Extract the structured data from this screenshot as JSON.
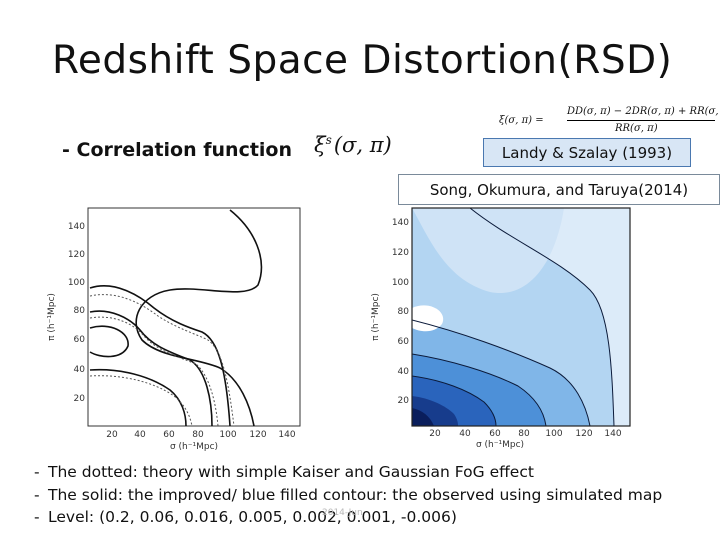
{
  "slide": {
    "title": "Redshift Space Distortion(RSD)",
    "subtitle": "- Correlation function",
    "xi_symbol": "ξ",
    "xi_superscript": "s",
    "xi_args": "(σ, π)",
    "formula": {
      "lhs": "ξ(σ, π) =",
      "numerator": "DD(σ, π) − 2DR(σ, π) + RR(σ, π)",
      "denominator": "RR(σ, π)"
    },
    "ref_landy": "Landy & Szalay (1993)",
    "ref_song": "Song, Okumura, and Taruya(2014)",
    "notes": [
      "The dotted: theory with simple Kaiser and Gaussian FoG effect",
      "The solid: the improved/ blue filled contour: the observed using simulated map",
      "Level: (0.2, 0.06, 0.016, 0.005, 0.002, 0.001, -0.006)"
    ],
    "note_dash": "-",
    "watermark": "2014-Jun"
  },
  "plots": {
    "x_ticks": [
      "20",
      "40",
      "60",
      "80",
      "100",
      "120",
      "140"
    ],
    "y_ticks": [
      "20",
      "40",
      "60",
      "80",
      "100",
      "120",
      "140"
    ],
    "xlabel": "σ (h⁻¹Mpc)",
    "ylabel": "π (h⁻¹Mpc)",
    "colors": {
      "fill_levels": [
        "#dcebf9",
        "#b3d5f2",
        "#80b6e8",
        "#4d90d8",
        "#2a64bc",
        "#173c8c",
        "#0a1e5c"
      ]
    }
  }
}
